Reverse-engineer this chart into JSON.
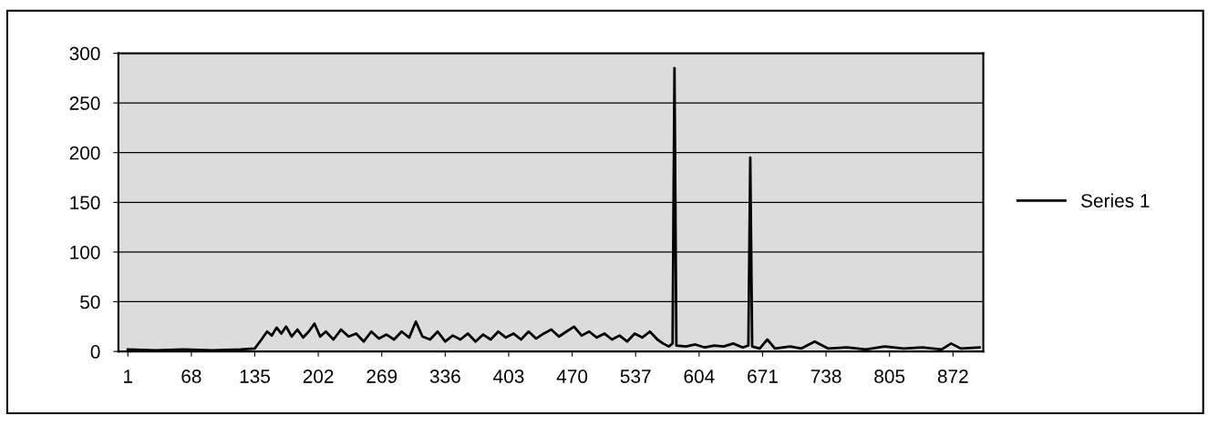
{
  "chart_data": {
    "type": "line",
    "x": [
      1,
      30,
      60,
      90,
      120,
      135,
      142,
      148,
      153,
      158,
      163,
      168,
      174,
      180,
      186,
      192,
      198,
      204,
      210,
      218,
      226,
      234,
      242,
      250,
      258,
      266,
      274,
      282,
      290,
      298,
      305,
      312,
      320,
      328,
      336,
      344,
      352,
      360,
      368,
      376,
      384,
      392,
      400,
      408,
      416,
      424,
      432,
      440,
      448,
      456,
      464,
      472,
      480,
      488,
      496,
      504,
      512,
      520,
      528,
      536,
      544,
      552,
      560,
      566,
      572,
      576,
      578,
      580,
      590,
      600,
      610,
      620,
      630,
      640,
      650,
      656,
      658,
      660,
      668,
      676,
      684,
      700,
      712,
      726,
      740,
      760,
      780,
      800,
      820,
      840,
      860,
      870,
      880,
      900
    ],
    "series": [
      {
        "name": "Series 1",
        "color": "#000000",
        "values": [
          2,
          1,
          2,
          1,
          2,
          3,
          12,
          20,
          16,
          24,
          18,
          25,
          15,
          22,
          14,
          20,
          28,
          15,
          20,
          12,
          22,
          15,
          18,
          10,
          20,
          13,
          17,
          12,
          20,
          14,
          30,
          15,
          12,
          20,
          10,
          16,
          12,
          18,
          10,
          17,
          12,
          20,
          14,
          18,
          12,
          20,
          13,
          18,
          22,
          15,
          20,
          25,
          16,
          20,
          14,
          18,
          12,
          16,
          10,
          18,
          14,
          20,
          12,
          8,
          5,
          8,
          285,
          6,
          5,
          7,
          4,
          6,
          5,
          8,
          4,
          6,
          195,
          5,
          3,
          12,
          3,
          5,
          3,
          10,
          3,
          4,
          2,
          5,
          3,
          4,
          2,
          8,
          3,
          4
        ]
      }
    ],
    "xlim": [
      -9,
      904
    ],
    "xticks": [
      1,
      68,
      135,
      202,
      269,
      336,
      403,
      470,
      537,
      604,
      671,
      738,
      805,
      872
    ],
    "ylim": [
      0,
      300
    ],
    "yticks": [
      0,
      50,
      100,
      150,
      200,
      250,
      300
    ],
    "grid": "y",
    "legend": "right"
  }
}
